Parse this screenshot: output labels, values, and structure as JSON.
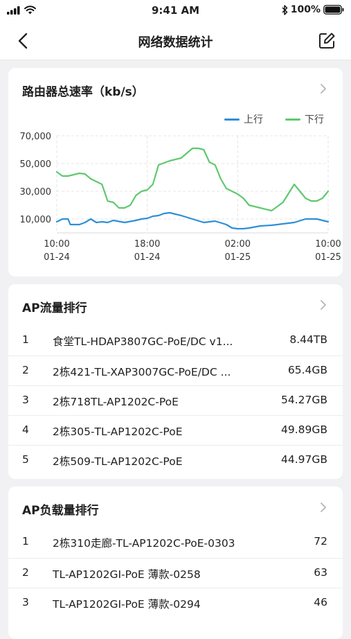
{
  "status_bar": {
    "time": "9:41 AM",
    "battery": "100%"
  },
  "nav": {
    "title": "网络数据统计"
  },
  "speed_card": {
    "title": "路由器总速率（kb/s）",
    "legend": [
      {
        "name": "上行",
        "color": "#2e8fd6"
      },
      {
        "name": "下行",
        "color": "#5ec96e"
      }
    ]
  },
  "chart_data": {
    "type": "line",
    "title": "路由器总速率（kb/s）",
    "x_ticks": [
      {
        "x": 0,
        "line1": "10:00",
        "line2": "01-24"
      },
      {
        "x": 8,
        "line1": "18:00",
        "line2": "01-24"
      },
      {
        "x": 16,
        "line1": "02:00",
        "line2": "01-25"
      },
      {
        "x": 24,
        "line1": "10:00",
        "line2": "01-25"
      }
    ],
    "y_ticks": [
      "10,000",
      "30,000",
      "50,000",
      "70,000"
    ],
    "ylim": [
      0,
      70000
    ],
    "xlim": [
      0,
      24
    ],
    "series": [
      {
        "name": "上行",
        "color": "#2e8fd6",
        "x": [
          0,
          0.5,
          1,
          1.2,
          2,
          2.5,
          3,
          3.5,
          4,
          4.5,
          5,
          6,
          7,
          7.5,
          8,
          8.5,
          9,
          9.5,
          10,
          10.5,
          11,
          12,
          13,
          14,
          15,
          15.5,
          16,
          16.5,
          17,
          18,
          19,
          20,
          21,
          22,
          23,
          23.5,
          24
        ],
        "values": [
          8000,
          10000,
          10000,
          6000,
          6000,
          7500,
          10000,
          7500,
          8000,
          7500,
          9000,
          7500,
          9000,
          10000,
          10500,
          12000,
          12500,
          14000,
          14500,
          13500,
          12500,
          10000,
          7500,
          8500,
          6000,
          3500,
          3000,
          3000,
          3500,
          5000,
          5500,
          6500,
          7500,
          10000,
          10000,
          9000,
          8000
        ]
      },
      {
        "name": "下行",
        "color": "#5ec96e",
        "x": [
          0,
          0.5,
          1,
          1.5,
          2,
          2.5,
          3,
          4,
          4.5,
          5,
          5.5,
          6,
          6.5,
          7,
          7.5,
          8,
          8.5,
          9,
          10,
          11,
          12,
          12.5,
          13,
          13.5,
          14,
          14.5,
          15,
          16,
          16.5,
          17,
          18,
          19,
          20,
          21,
          22,
          22.5,
          23,
          23.5,
          24
        ],
        "values": [
          44000,
          41000,
          41000,
          42000,
          43000,
          42500,
          39000,
          35000,
          23000,
          22000,
          18000,
          18000,
          20000,
          27000,
          30000,
          31000,
          35000,
          49000,
          52000,
          54000,
          61000,
          61000,
          60000,
          51000,
          49000,
          39000,
          32000,
          28000,
          25000,
          20000,
          18000,
          16000,
          22000,
          35000,
          25000,
          23000,
          23000,
          25000,
          30000
        ]
      }
    ],
    "grid": true
  },
  "ap_traffic": {
    "title": "AP流量排行",
    "rows": [
      {
        "rank": "1",
        "name": "食堂TL-HDAP3807GC-PoE/DC v1...",
        "value": "8.44TB"
      },
      {
        "rank": "2",
        "name": "2栋421-TL-XAP3007GC-PoE/DC ...",
        "value": "65.4GB"
      },
      {
        "rank": "3",
        "name": "2栋718TL-AP1202C-PoE",
        "value": "54.27GB"
      },
      {
        "rank": "4",
        "name": "2栋305-TL-AP1202C-PoE",
        "value": "49.89GB"
      },
      {
        "rank": "5",
        "name": "2栋509-TL-AP1202C-PoE",
        "value": "44.97GB"
      }
    ]
  },
  "ap_load": {
    "title": "AP负载量排行",
    "rows": [
      {
        "rank": "1",
        "name": "2栋310走廊-TL-AP1202C-PoE-0303",
        "value": "72"
      },
      {
        "rank": "2",
        "name": "TL-AP1202GI-PoE 薄款-0258",
        "value": "63"
      },
      {
        "rank": "3",
        "name": "TL-AP1202GI-PoE 薄款-0294",
        "value": "46"
      }
    ]
  }
}
